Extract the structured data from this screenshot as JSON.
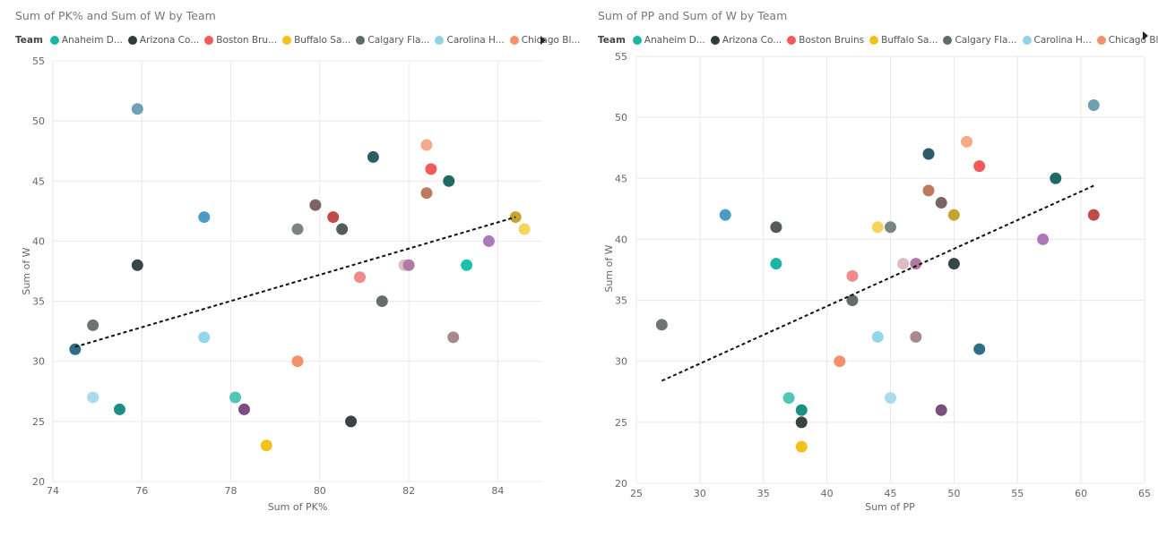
{
  "chart_data": [
    {
      "type": "scatter",
      "title": "Sum of PK% and Sum of W by Team",
      "xlabel": "Sum of PK%",
      "ylabel": "Sum of W",
      "xlim": [
        74,
        85
      ],
      "ylim": [
        20,
        55
      ],
      "xticks": [
        74,
        76,
        78,
        80,
        82,
        84
      ],
      "yticks": [
        20,
        25,
        30,
        35,
        40,
        45,
        50,
        55
      ],
      "legend_title": "Team",
      "legend": [
        {
          "label": "Anaheim D...",
          "color": "#1ab5a5"
        },
        {
          "label": "Arizona Co...",
          "color": "#2f3b3b"
        },
        {
          "label": "Boston Bru...",
          "color": "#f05a5a"
        },
        {
          "label": "Buffalo Sa...",
          "color": "#f2c21b"
        },
        {
          "label": "Calgary Fla...",
          "color": "#5f6b6b"
        },
        {
          "label": "Carolina H...",
          "color": "#8fd3e8"
        },
        {
          "label": "Chicago Bl...",
          "color": "#f7906a"
        }
      ],
      "trendline": {
        "x": [
          74.5,
          84.4
        ],
        "y": [
          31.2,
          42.0
        ]
      },
      "points": [
        {
          "x": 75.9,
          "y": 51,
          "color": "#6fa1b3"
        },
        {
          "x": 77.4,
          "y": 42,
          "color": "#4b9cc4"
        },
        {
          "x": 75.9,
          "y": 38,
          "color": "#3a4545"
        },
        {
          "x": 74.9,
          "y": 33,
          "color": "#6d7474"
        },
        {
          "x": 74.5,
          "y": 31,
          "color": "#2e6f85"
        },
        {
          "x": 74.9,
          "y": 27,
          "color": "#a8dcec"
        },
        {
          "x": 75.5,
          "y": 26,
          "color": "#1e8f83"
        },
        {
          "x": 77.4,
          "y": 32,
          "color": "#93d7ea"
        },
        {
          "x": 78.1,
          "y": 27,
          "color": "#4fc7b7"
        },
        {
          "x": 78.3,
          "y": 26,
          "color": "#7a4f7e"
        },
        {
          "x": 78.8,
          "y": 23,
          "color": "#f2c21b"
        },
        {
          "x": 79.5,
          "y": 41,
          "color": "#7a8582"
        },
        {
          "x": 79.9,
          "y": 43,
          "color": "#7a6464"
        },
        {
          "x": 79.5,
          "y": 30,
          "color": "#f7906a"
        },
        {
          "x": 80.3,
          "y": 42,
          "color": "#c14a4a"
        },
        {
          "x": 80.5,
          "y": 41,
          "color": "#525c5a"
        },
        {
          "x": 80.9,
          "y": 37,
          "color": "#f28a8c"
        },
        {
          "x": 81.2,
          "y": 47,
          "color": "#2c5b6b"
        },
        {
          "x": 81.4,
          "y": 35,
          "color": "#646c6c"
        },
        {
          "x": 80.7,
          "y": 25,
          "color": "#3b4242"
        },
        {
          "x": 81.9,
          "y": 38,
          "color": "#dcbcc0"
        },
        {
          "x": 82.0,
          "y": 38,
          "color": "#b07aa5"
        },
        {
          "x": 82.4,
          "y": 48,
          "color": "#f8a98a"
        },
        {
          "x": 82.5,
          "y": 46,
          "color": "#f05a5a"
        },
        {
          "x": 82.4,
          "y": 44,
          "color": "#bd7a5c"
        },
        {
          "x": 82.9,
          "y": 45,
          "color": "#1e6b63"
        },
        {
          "x": 83.0,
          "y": 32,
          "color": "#a8898d"
        },
        {
          "x": 83.3,
          "y": 38,
          "color": "#1ec0ad"
        },
        {
          "x": 83.8,
          "y": 40,
          "color": "#a97ab6"
        },
        {
          "x": 84.4,
          "y": 42,
          "color": "#c4a42e"
        },
        {
          "x": 84.6,
          "y": 41,
          "color": "#f5d45a"
        }
      ]
    },
    {
      "type": "scatter",
      "title": "Sum of PP and Sum of W by Team",
      "xlabel": "Sum of PP",
      "ylabel": "Sum of W",
      "xlim": [
        25,
        65
      ],
      "ylim": [
        20,
        55
      ],
      "xticks": [
        25,
        30,
        35,
        40,
        45,
        50,
        55,
        60,
        65
      ],
      "yticks": [
        20,
        25,
        30,
        35,
        40,
        45,
        50,
        55
      ],
      "legend_title": "Team",
      "legend": [
        {
          "label": "Anaheim D...",
          "color": "#1ab5a5"
        },
        {
          "label": "Arizona Co...",
          "color": "#2f3b3b"
        },
        {
          "label": "Boston Bruins",
          "color": "#f05a5a"
        },
        {
          "label": "Buffalo Sa...",
          "color": "#f2c21b"
        },
        {
          "label": "Calgary Fla...",
          "color": "#5f6b6b"
        },
        {
          "label": "Carolina H...",
          "color": "#8fd3e8"
        },
        {
          "label": "Chicago Bl...",
          "color": "#f7906a"
        }
      ],
      "trendline": {
        "x": [
          27,
          61
        ],
        "y": [
          28.4,
          44.4
        ]
      },
      "points": [
        {
          "x": 61,
          "y": 51,
          "color": "#6fa1b3"
        },
        {
          "x": 32,
          "y": 42,
          "color": "#4b9cc4"
        },
        {
          "x": 36,
          "y": 41,
          "color": "#545b5b"
        },
        {
          "x": 36,
          "y": 38,
          "color": "#1ab5a5"
        },
        {
          "x": 27,
          "y": 33,
          "color": "#6d7474"
        },
        {
          "x": 37,
          "y": 27,
          "color": "#4fc7b7"
        },
        {
          "x": 38,
          "y": 26,
          "color": "#1e8f83"
        },
        {
          "x": 38,
          "y": 25,
          "color": "#3b4242"
        },
        {
          "x": 38,
          "y": 23,
          "color": "#f2c21b"
        },
        {
          "x": 41,
          "y": 30,
          "color": "#f7906a"
        },
        {
          "x": 42,
          "y": 37,
          "color": "#f28a8c"
        },
        {
          "x": 42,
          "y": 35,
          "color": "#646c6c"
        },
        {
          "x": 44,
          "y": 41,
          "color": "#f5d45a"
        },
        {
          "x": 44,
          "y": 32,
          "color": "#93d7ea"
        },
        {
          "x": 45,
          "y": 41,
          "color": "#7a8582"
        },
        {
          "x": 45,
          "y": 27,
          "color": "#a8dcec"
        },
        {
          "x": 46,
          "y": 38,
          "color": "#dcbcc0"
        },
        {
          "x": 47,
          "y": 38,
          "color": "#b07aa5"
        },
        {
          "x": 47,
          "y": 32,
          "color": "#a8898d"
        },
        {
          "x": 48,
          "y": 47,
          "color": "#2c5b6b"
        },
        {
          "x": 48,
          "y": 44,
          "color": "#bd7a5c"
        },
        {
          "x": 49,
          "y": 43,
          "color": "#7a6464"
        },
        {
          "x": 49,
          "y": 26,
          "color": "#7a4f7e"
        },
        {
          "x": 50,
          "y": 42,
          "color": "#c4a42e"
        },
        {
          "x": 50,
          "y": 38,
          "color": "#3a4545"
        },
        {
          "x": 51,
          "y": 48,
          "color": "#f8a98a"
        },
        {
          "x": 52,
          "y": 46,
          "color": "#f05a5a"
        },
        {
          "x": 52,
          "y": 31,
          "color": "#2e6f85"
        },
        {
          "x": 57,
          "y": 40,
          "color": "#a97ab6"
        },
        {
          "x": 58,
          "y": 45,
          "color": "#1e6b63"
        },
        {
          "x": 61,
          "y": 42,
          "color": "#c14a4a"
        }
      ]
    }
  ]
}
